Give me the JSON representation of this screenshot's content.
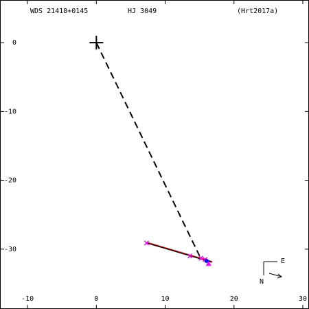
{
  "chart_data": {
    "type": "scatter",
    "title": "WDS 21418+0145",
    "subtitle": "HJ 3049",
    "reference": "(Hrt2017a)",
    "compass": {
      "east": "E",
      "north": "N"
    },
    "xlim": [
      -14,
      30.9
    ],
    "ylim": [
      -38.7,
      6.2
    ],
    "xticks": [
      -10,
      0,
      10,
      20,
      30
    ],
    "yticks": [
      0,
      -10,
      -20,
      -30
    ],
    "series": [
      {
        "color": "#000000",
        "marker": "plus",
        "linestyle": "none",
        "x": [
          0
        ],
        "values": [
          0
        ]
      },
      {
        "color": "#000000",
        "marker": "none",
        "linestyle": "dashed",
        "x": [
          0,
          15.0
        ],
        "values": [
          0,
          -31.0
        ]
      },
      {
        "color": "#ff0000",
        "marker": "none",
        "linestyle": "solid",
        "x": [
          7.3,
          16.8
        ],
        "values": [
          -29.0,
          -31.8
        ]
      },
      {
        "color": "#000000",
        "marker": "none",
        "linestyle": "solid",
        "x": [
          7.3,
          16.8
        ],
        "values": [
          -29.1,
          -31.9
        ]
      },
      {
        "color": "#ff00ff",
        "marker": "x",
        "linestyle": "none",
        "x": [
          7.3,
          13.6,
          15.2,
          15.8
        ],
        "values": [
          -29.1,
          -31.0,
          -31.3,
          -31.5
        ]
      },
      {
        "color": "#0000ff",
        "marker": "dot",
        "linestyle": "none",
        "x": [
          16.0
        ],
        "values": [
          -31.7
        ]
      },
      {
        "color": "#ff00ff",
        "marker": "triangle",
        "linestyle": "none",
        "x": [
          16.3
        ],
        "values": [
          -32.1
        ]
      }
    ]
  }
}
